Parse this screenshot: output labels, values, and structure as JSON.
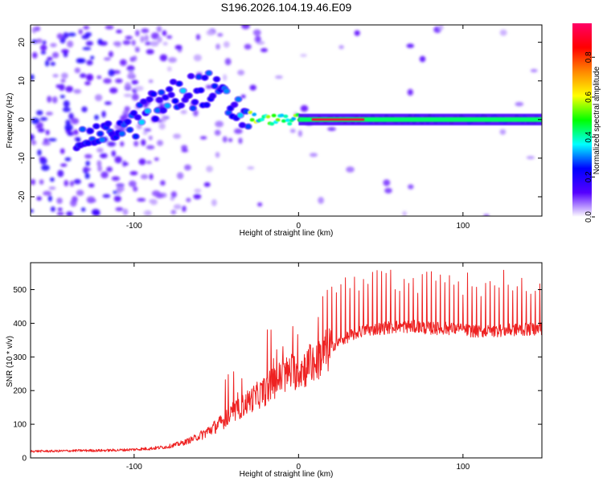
{
  "title": "S196.2026.104.19.46.E09",
  "colors": {
    "snr_line": "#ee2222",
    "frame": "#000000"
  },
  "chart_data": [
    {
      "type": "heatmap",
      "name": "spectrogram",
      "xlabel": "Height of straight line (km)",
      "ylabel": "Frequency (Hz)",
      "xlim": [
        -163,
        148
      ],
      "ylim": [
        -25,
        24.5
      ],
      "x_ticks": [
        -100,
        0,
        100
      ],
      "x_tick_labels": [
        "-100",
        "0",
        "100"
      ],
      "y_ticks": [
        -20,
        -10,
        0,
        10,
        20
      ],
      "y_tick_labels": [
        "-20",
        "-10",
        "0",
        "10",
        "20"
      ],
      "colorbar": {
        "label": "Normalized spectral amplitude",
        "range": [
          0,
          0.97
        ],
        "ticks": [
          0.0,
          0.2,
          0.4,
          0.6,
          0.8
        ],
        "tick_labels": [
          "0.0",
          "0.2",
          "0.4",
          "0.6",
          "0.8"
        ],
        "colormap": [
          "#ffffff",
          "#5500ff",
          "#0000ff",
          "#00ffff",
          "#00ff00",
          "#ffff00",
          "#ff8800",
          "#ff0000",
          "#ff0066"
        ]
      },
      "ridge": {
        "description": "spectral energy concentrated along a ridge rising from ~-5 Hz near -130 km to ~+8 Hz near -55 km, then collapsing to ~0 Hz above -20 km and remaining at ~0 Hz out to 148 km",
        "points": [
          {
            "x": -130,
            "y": -5
          },
          {
            "x": -105,
            "y": -2
          },
          {
            "x": -85,
            "y": 4
          },
          {
            "x": -70,
            "y": 7
          },
          {
            "x": -55,
            "y": 8
          },
          {
            "x": -40,
            "y": 3
          },
          {
            "x": -25,
            "y": 0
          },
          {
            "x": 0,
            "y": 0
          },
          {
            "x": 50,
            "y": 0
          },
          {
            "x": 100,
            "y": 0
          },
          {
            "x": 148,
            "y": 0
          }
        ]
      }
    },
    {
      "type": "line",
      "name": "snr",
      "xlabel": "Height of straight line (km)",
      "ylabel": "SNR (10 * v/v)",
      "xlim": [
        -163,
        148
      ],
      "ylim": [
        0,
        580
      ],
      "x_ticks": [
        -100,
        0,
        100
      ],
      "x_tick_labels": [
        "-100",
        "0",
        "100"
      ],
      "y_ticks": [
        0,
        100,
        200,
        300,
        400,
        500
      ],
      "y_tick_labels": [
        "0",
        "100",
        "200",
        "300",
        "400",
        "500"
      ],
      "series": [
        {
          "name": "SNR",
          "x": [
            -163,
            -150,
            -140,
            -130,
            -120,
            -110,
            -100,
            -90,
            -80,
            -70,
            -60,
            -50,
            -40,
            -30,
            -20,
            -15,
            -10,
            -5,
            0,
            5,
            10,
            15,
            20,
            30,
            40,
            50,
            60,
            70,
            80,
            90,
            100,
            110,
            120,
            130,
            140,
            148
          ],
          "values": [
            20,
            20,
            21,
            22,
            22,
            23,
            25,
            28,
            33,
            45,
            65,
            95,
            130,
            170,
            200,
            225,
            240,
            255,
            260,
            270,
            285,
            310,
            330,
            360,
            380,
            385,
            390,
            390,
            385,
            385,
            380,
            375,
            378,
            380,
            382,
            385
          ]
        }
      ]
    }
  ]
}
